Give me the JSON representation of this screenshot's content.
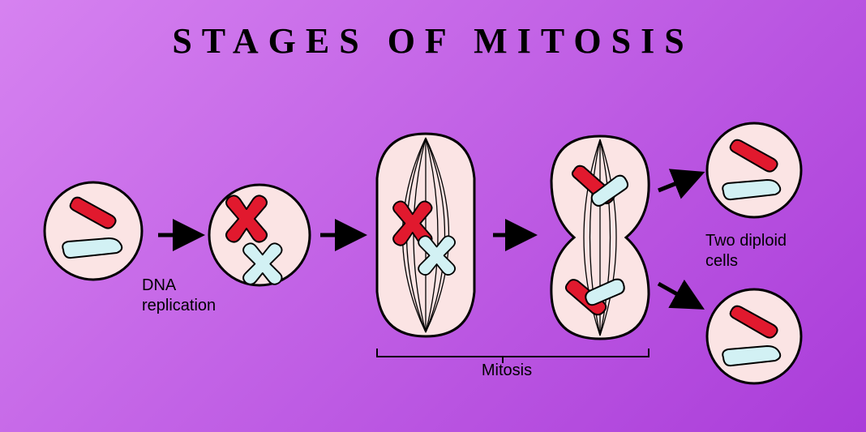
{
  "title": "STAGES OF MITOSIS",
  "title_fontsize": 44,
  "bg_gradient_from": "#d682f0",
  "bg_gradient_to": "#aa3cd9",
  "cell_fill": "#fbe4e4",
  "cell_stroke": "#000000",
  "chrom_red": "#e1192e",
  "chrom_blue": "#d2f1f4",
  "arrow_color": "#000000",
  "label_fontsize": 20,
  "labels": {
    "dna": "DNA\nreplication",
    "mitosis": "Mitosis",
    "result": "Two diploid\ncells"
  },
  "stroke_width_cell": 3,
  "stroke_width_chrom": 2,
  "spindle_stroke": "#000000",
  "spindle_width": 1.3
}
